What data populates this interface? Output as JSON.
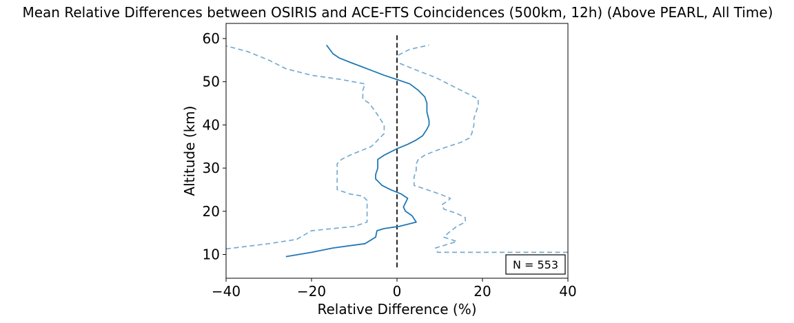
{
  "chart_data": {
    "type": "line",
    "title": "Mean Relative Differences between OSIRIS and ACE-FTS Coincidences (500km, 12h) (Above PEARL, All Time)",
    "xlabel": "Relative Difference (%)",
    "ylabel": "Altitude (km)",
    "xlim": [
      -40,
      40
    ],
    "ylim": [
      4.5,
      63.5
    ],
    "xticks": [
      -40,
      -20,
      0,
      20,
      40
    ],
    "xtick_labels": [
      "−40",
      "−20",
      "0",
      "20",
      "40"
    ],
    "yticks": [
      10,
      20,
      30,
      40,
      50,
      60
    ],
    "ytick_labels": [
      "10",
      "20",
      "30",
      "40",
      "50",
      "60"
    ],
    "grid": false,
    "annotation": "N = 553",
    "annotation_position": "bottom-right",
    "series": [
      {
        "role": "mean",
        "style": "solid",
        "color": "#1f77b4",
        "points": [
          [
            -26,
            9.5
          ],
          [
            -20,
            10.5
          ],
          [
            -15,
            11.5
          ],
          [
            -7.5,
            12.5
          ],
          [
            -5,
            14
          ],
          [
            -4.7,
            15.5
          ],
          [
            -3,
            16
          ],
          [
            0.5,
            16.5
          ],
          [
            4.5,
            17.5
          ],
          [
            3.5,
            19
          ],
          [
            2,
            20
          ],
          [
            1.5,
            21
          ],
          [
            2,
            22
          ],
          [
            2.5,
            23
          ],
          [
            1,
            24
          ],
          [
            -1.5,
            25
          ],
          [
            -3.5,
            26
          ],
          [
            -5,
            27.5
          ],
          [
            -5,
            28.5
          ],
          [
            -4.5,
            30
          ],
          [
            -4.5,
            31
          ],
          [
            -4.5,
            32
          ],
          [
            -3,
            33
          ],
          [
            0,
            34.5
          ],
          [
            2.5,
            35.5
          ],
          [
            4.5,
            36.5
          ],
          [
            6,
            37.5
          ],
          [
            7,
            39
          ],
          [
            7.5,
            40
          ],
          [
            7.5,
            41
          ],
          [
            7,
            43
          ],
          [
            7,
            45
          ],
          [
            6.5,
            46.5
          ],
          [
            5,
            48
          ],
          [
            3,
            49.5
          ],
          [
            0,
            50.5
          ],
          [
            -3,
            51.5
          ],
          [
            -7,
            53
          ],
          [
            -11,
            54.5
          ],
          [
            -13.5,
            55.5
          ],
          [
            -15,
            56.5
          ],
          [
            -16.5,
            58.5
          ]
        ]
      },
      {
        "role": "lower bound",
        "style": "dashed",
        "color": "#75abd1",
        "points": [
          [
            -40,
            11.3
          ],
          [
            -30,
            12.5
          ],
          [
            -23.5,
            13.5
          ],
          [
            -20,
            15.5
          ],
          [
            -15,
            16
          ],
          [
            -10,
            16.5
          ],
          [
            -7,
            17.5
          ],
          [
            -7,
            20
          ],
          [
            -7,
            22.5
          ],
          [
            -8,
            23.5
          ],
          [
            -11,
            24
          ],
          [
            -14,
            25
          ],
          [
            -14,
            26
          ],
          [
            -14,
            27
          ],
          [
            -14,
            28
          ],
          [
            -14,
            29.5
          ],
          [
            -14,
            31
          ],
          [
            -13,
            32
          ],
          [
            -11,
            33
          ],
          [
            -8.5,
            34
          ],
          [
            -6,
            35
          ],
          [
            -5,
            36
          ],
          [
            -4,
            37
          ],
          [
            -3,
            38
          ],
          [
            -3,
            40
          ],
          [
            -4,
            41.5
          ],
          [
            -5,
            43
          ],
          [
            -6.5,
            45
          ],
          [
            -8,
            46
          ],
          [
            -8,
            47
          ],
          [
            -8,
            48
          ],
          [
            -7.5,
            49.5
          ],
          [
            -13,
            50.5
          ],
          [
            -20,
            51.5
          ],
          [
            -26,
            53
          ],
          [
            -30,
            55
          ],
          [
            -35,
            57
          ],
          [
            -40,
            58.3
          ]
        ]
      },
      {
        "role": "upper bound",
        "style": "dashed",
        "color": "#75abd1",
        "points": [
          [
            40,
            10.5
          ],
          [
            9.5,
            10.5
          ],
          [
            9,
            11.5
          ],
          [
            14,
            13
          ],
          [
            11,
            14
          ],
          [
            12,
            15
          ],
          [
            14,
            16.5
          ],
          [
            16,
            17.5
          ],
          [
            16,
            18.5
          ],
          [
            14,
            19.5
          ],
          [
            11,
            20.5
          ],
          [
            10.5,
            21.5
          ],
          [
            12,
            22.5
          ],
          [
            12.5,
            23
          ],
          [
            10,
            24
          ],
          [
            7,
            25
          ],
          [
            4,
            26
          ],
          [
            4,
            27
          ],
          [
            4,
            28
          ],
          [
            4.5,
            29.5
          ],
          [
            4.5,
            31
          ],
          [
            5,
            32
          ],
          [
            6.5,
            33
          ],
          [
            9,
            34
          ],
          [
            12,
            35
          ],
          [
            15,
            36
          ],
          [
            17,
            37
          ],
          [
            17.5,
            38
          ],
          [
            18,
            40
          ],
          [
            18,
            41.5
          ],
          [
            18.5,
            43
          ],
          [
            19,
            44.5
          ],
          [
            19,
            46
          ],
          [
            17,
            47
          ],
          [
            15,
            48
          ],
          [
            12,
            49.5
          ],
          [
            9,
            51
          ],
          [
            5,
            52.5
          ],
          [
            0,
            54.5
          ],
          [
            0,
            56
          ],
          [
            3,
            57.5
          ],
          [
            7.5,
            58.5
          ]
        ]
      },
      {
        "role": "zero line",
        "style": "dashed",
        "color": "#000000",
        "points": [
          [
            0,
            7
          ],
          [
            0,
            61
          ]
        ]
      }
    ]
  }
}
